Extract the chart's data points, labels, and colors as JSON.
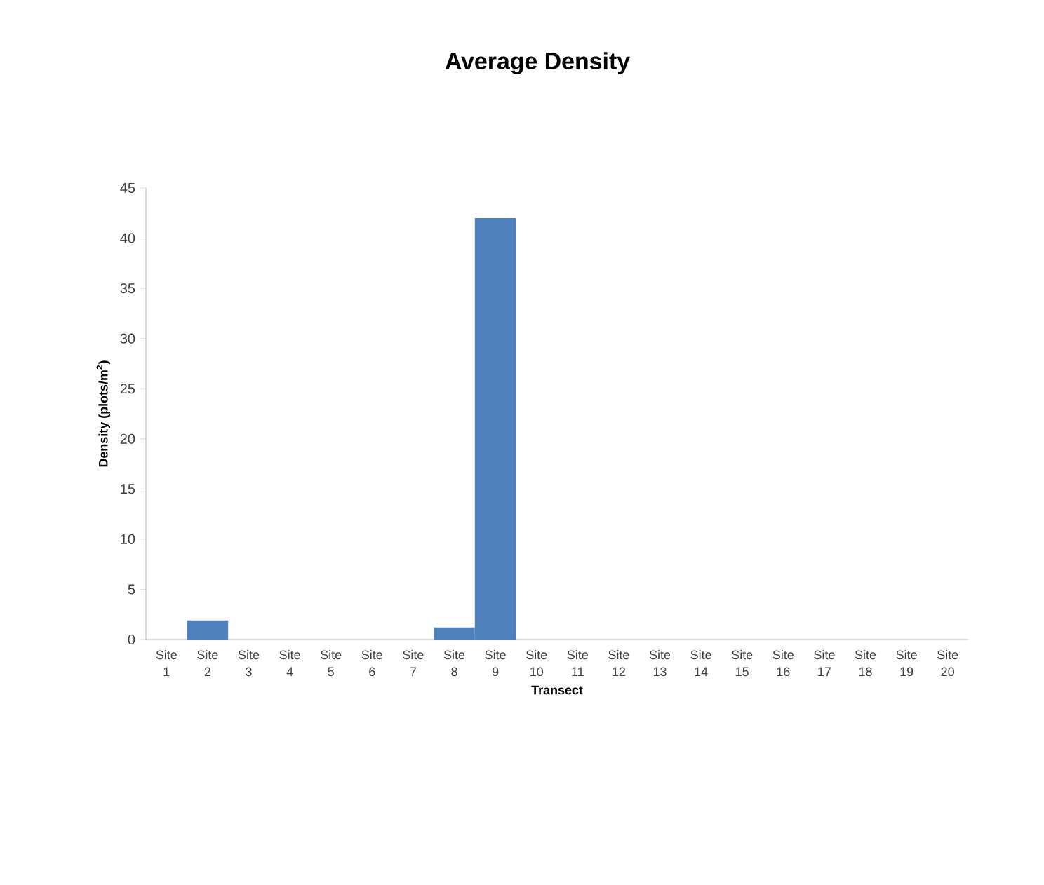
{
  "chart_data": {
    "type": "bar",
    "title": "Average Density",
    "xlabel": "Transect",
    "ylabel": "Density (plots/m$^{2}$)",
    "categories": [
      "Site 1",
      "Site 2",
      "Site 3",
      "Site 4",
      "Site 5",
      "Site 6",
      "Site 7",
      "Site 8",
      "Site 9",
      "Site 10",
      "Site 11",
      "Site 12",
      "Site 13",
      "Site 14",
      "Site 15",
      "Site 16",
      "Site 17",
      "Site 18",
      "Site 19",
      "Site 20"
    ],
    "values": [
      0,
      1.9,
      0,
      0,
      0,
      0,
      0,
      1.2,
      42,
      0,
      0,
      0,
      0,
      0,
      0,
      0,
      0,
      0,
      0,
      0
    ],
    "color": "#4f81bd",
    "ylim": [
      0,
      45
    ],
    "yticks": [
      0,
      5,
      10,
      15,
      20,
      25,
      30,
      35,
      40,
      45
    ]
  }
}
